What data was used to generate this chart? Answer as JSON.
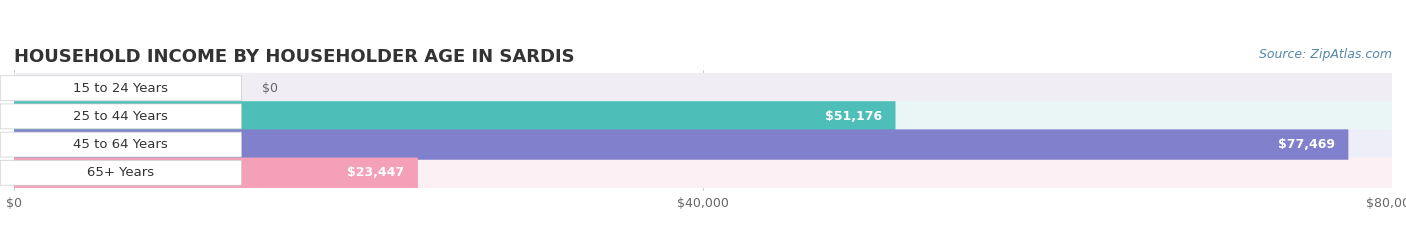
{
  "title": "HOUSEHOLD INCOME BY HOUSEHOLDER AGE IN SARDIS",
  "source": "Source: ZipAtlas.com",
  "categories": [
    "15 to 24 Years",
    "25 to 44 Years",
    "45 to 64 Years",
    "65+ Years"
  ],
  "values": [
    0,
    51176,
    77469,
    23447
  ],
  "bar_colors": [
    "#c9a0c8",
    "#4dbfb8",
    "#8080cc",
    "#f4a0b8"
  ],
  "bar_bg_colors": [
    "#f0eef4",
    "#eaf6f6",
    "#eeeef8",
    "#fdf0f4"
  ],
  "xlim": [
    0,
    80000
  ],
  "xtick_labels": [
    "$0",
    "$40,000",
    "$80,000"
  ],
  "title_fontsize": 13,
  "label_fontsize": 9.5,
  "value_fontsize": 9,
  "source_fontsize": 9,
  "bg_color": "#ffffff",
  "bar_height": 0.55
}
